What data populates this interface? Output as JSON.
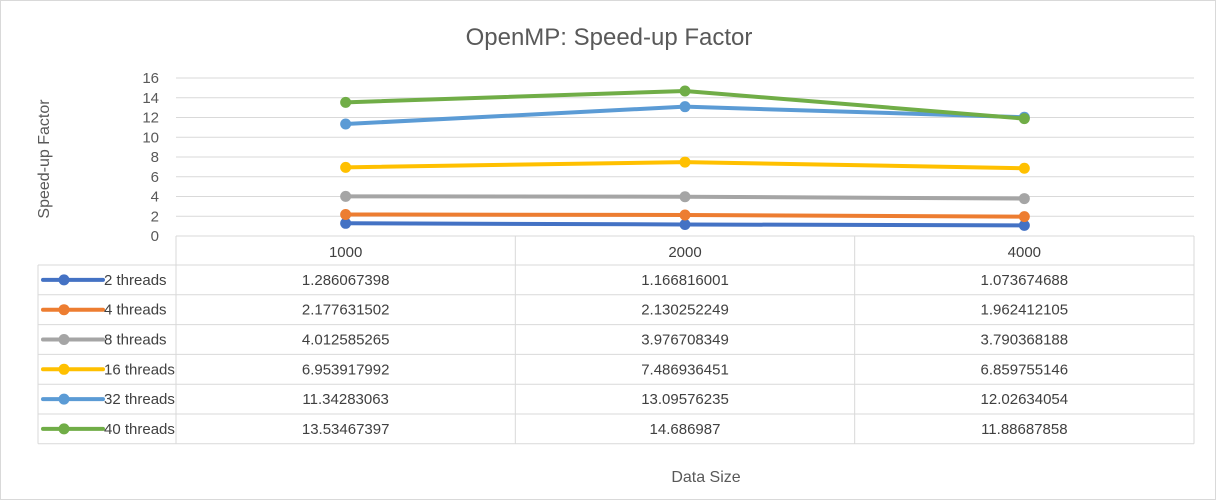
{
  "chart_data": {
    "type": "line",
    "title": "OpenMP: Speed-up Factor",
    "xlabel": "Data Size",
    "ylabel": "Speed-up Factor",
    "ylim": [
      0,
      16
    ],
    "yticks": [
      "0",
      "2",
      "4",
      "6",
      "8",
      "10",
      "12",
      "14",
      "16"
    ],
    "categories": [
      "1000",
      "2000",
      "4000"
    ],
    "grid": true,
    "legend": "data-table",
    "series": [
      {
        "name": "2 threads",
        "color": "#4472C4",
        "values": [
          1.286067398,
          1.166816001,
          1.073674688
        ],
        "labels": [
          "1.286067398",
          "1.166816001",
          "1.073674688"
        ]
      },
      {
        "name": "4 threads",
        "color": "#ED7D31",
        "values": [
          2.177631502,
          2.130252249,
          1.962412105
        ],
        "labels": [
          "2.177631502",
          "2.130252249",
          "1.962412105"
        ]
      },
      {
        "name": "8 threads",
        "color": "#A5A5A5",
        "values": [
          4.012585265,
          3.976708349,
          3.790368188
        ],
        "labels": [
          "4.012585265",
          "3.976708349",
          "3.790368188"
        ]
      },
      {
        "name": "16 threads",
        "color": "#FFC000",
        "values": [
          6.953917992,
          7.486936451,
          6.859755146
        ],
        "labels": [
          "6.953917992",
          "7.486936451",
          "6.859755146"
        ]
      },
      {
        "name": "32 threads",
        "color": "#5B9BD5",
        "values": [
          11.34283063,
          13.09576235,
          12.02634054
        ],
        "labels": [
          "11.34283063",
          "13.09576235",
          "12.02634054"
        ]
      },
      {
        "name": "40 threads",
        "color": "#70AD47",
        "values": [
          13.53467397,
          14.686987,
          11.88687858
        ],
        "labels": [
          "13.53467397",
          "14.686987",
          "11.88687858"
        ]
      }
    ]
  }
}
